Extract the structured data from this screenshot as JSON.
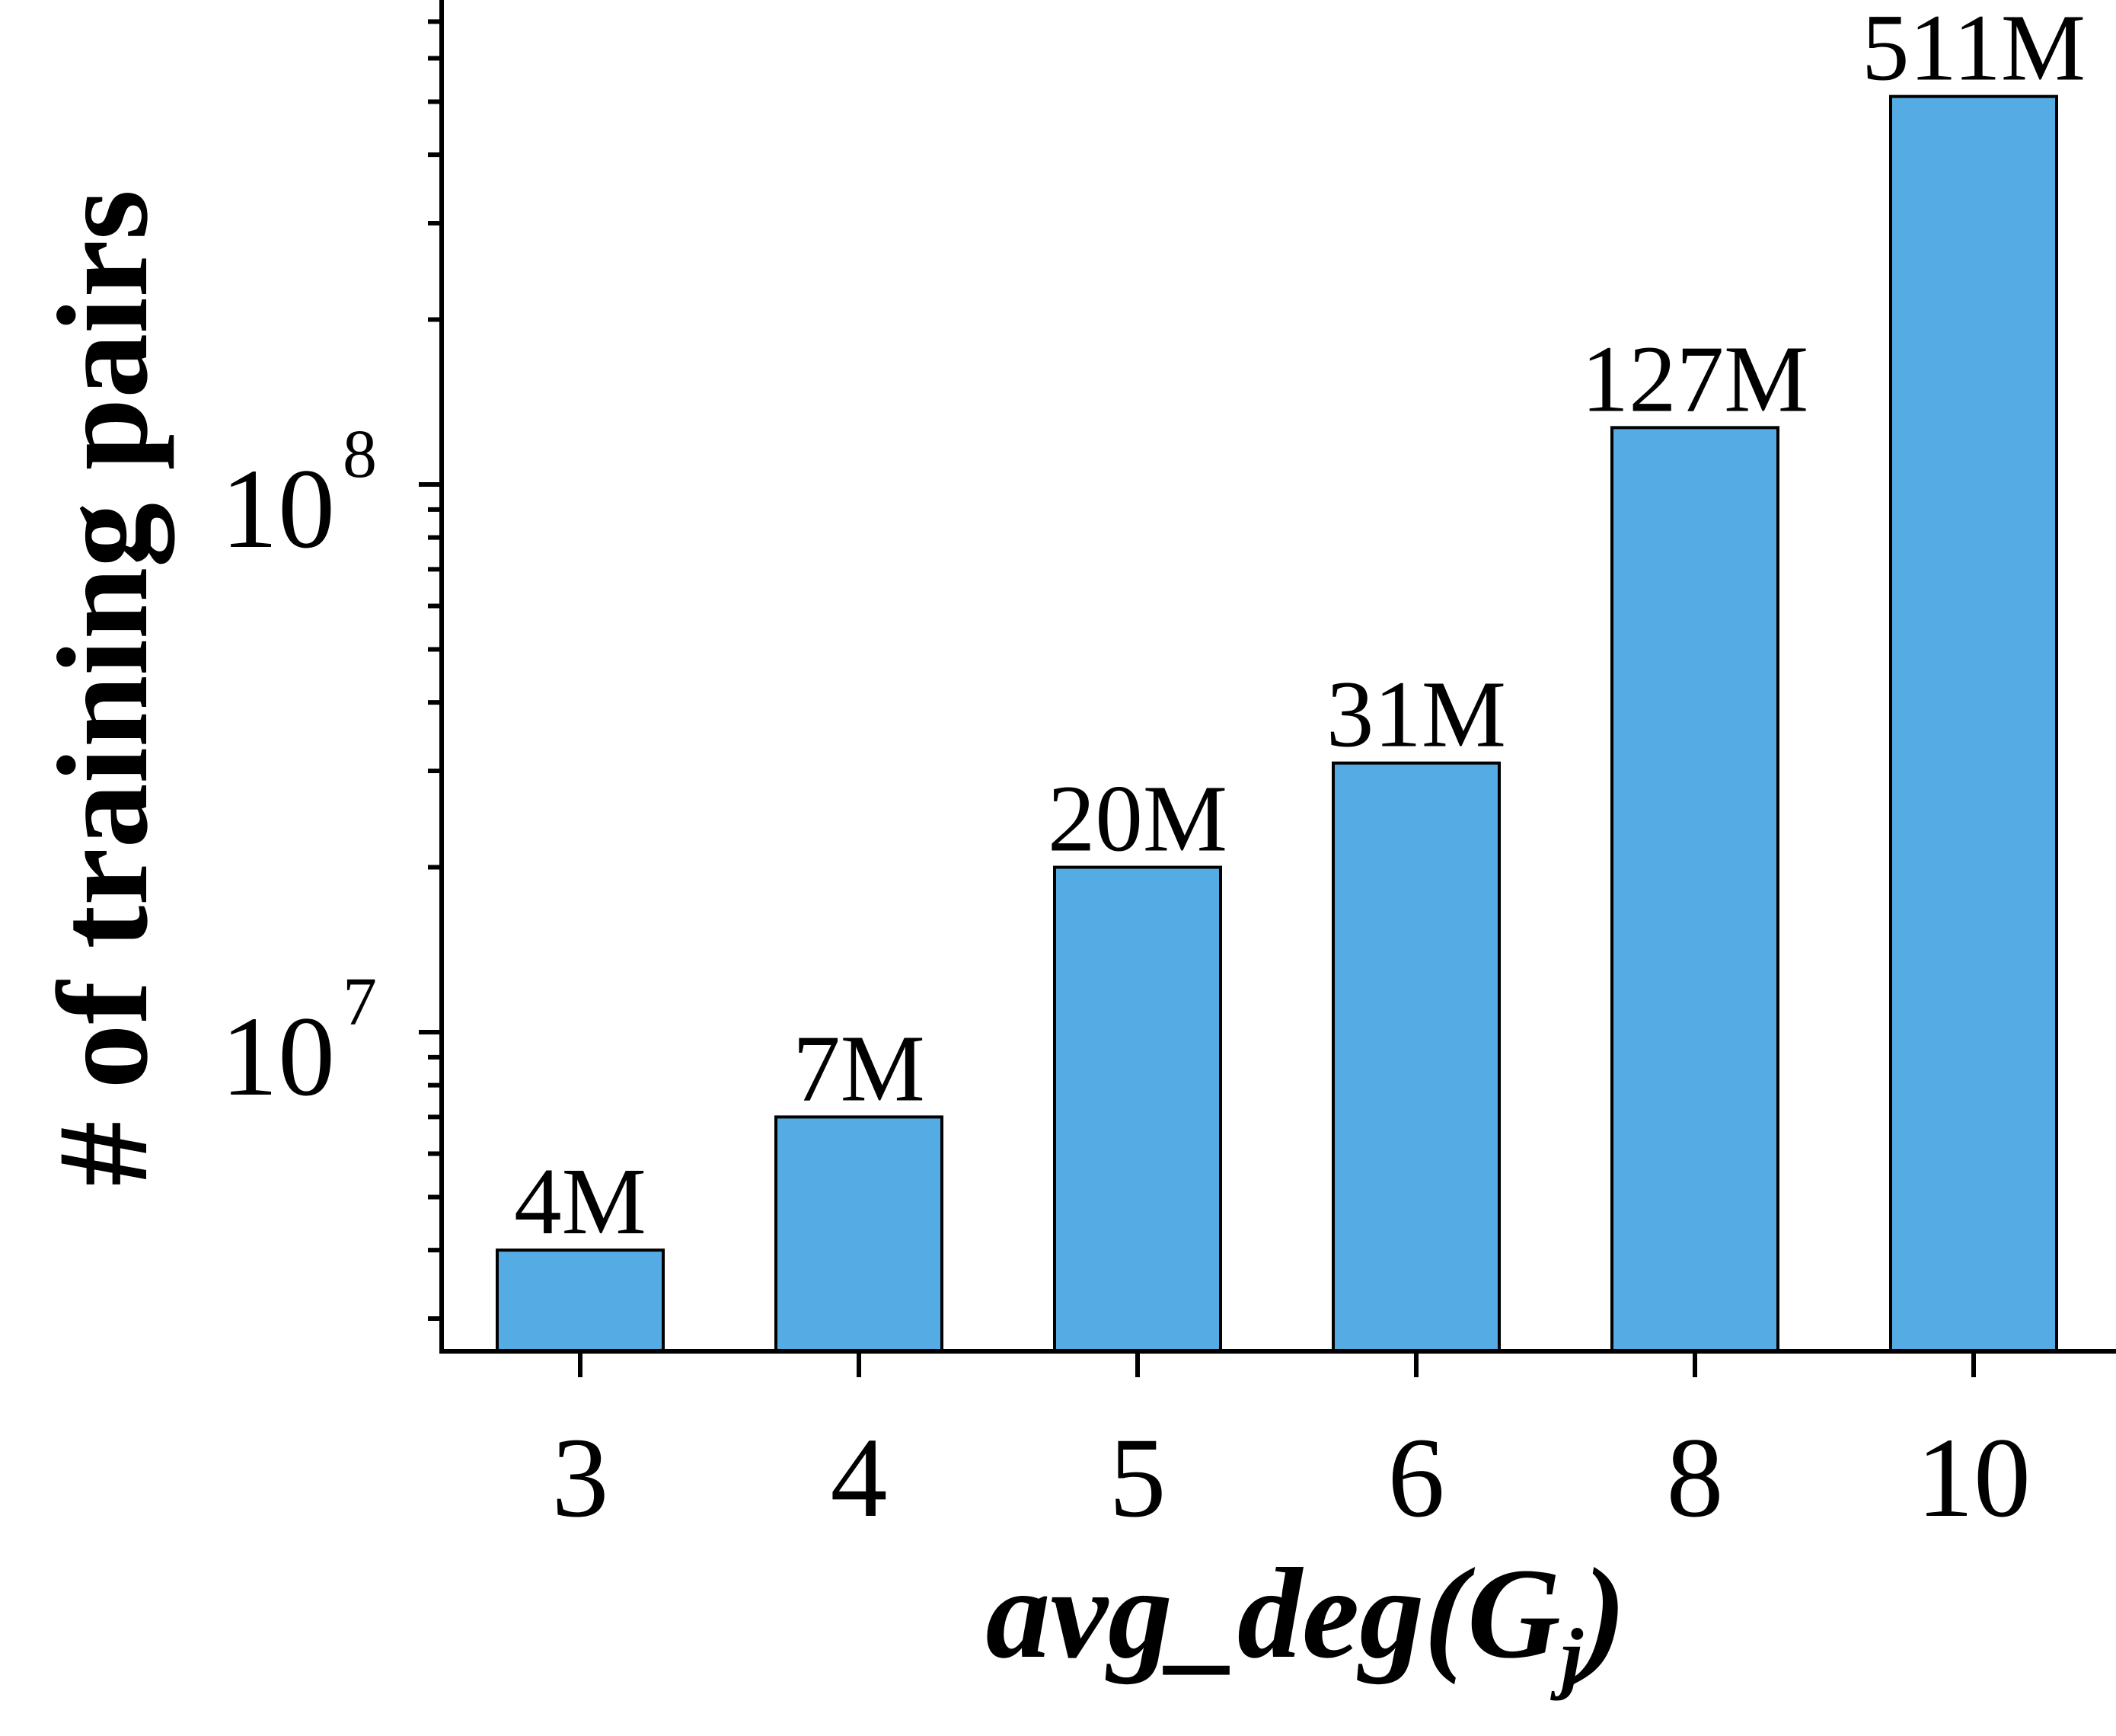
{
  "chart_data": {
    "type": "bar",
    "categories": [
      "3",
      "4",
      "5",
      "6",
      "8",
      "10"
    ],
    "values": [
      4000000,
      7000000,
      20000000,
      31000000,
      127000000,
      511000000
    ],
    "data_labels": [
      "4M",
      "7M",
      "20M",
      "31M",
      "127M",
      "511M"
    ],
    "xlabel_main": "avg_deg(G",
    "xlabel_sub": "j",
    "xlabel_close": ")",
    "ylabel": "# of training pairs",
    "yscale": "log",
    "ylim": [
      3000000,
      1000000000
    ],
    "y_ticks": [
      {
        "base": "10",
        "exp": "7",
        "value": 10000000
      },
      {
        "base": "10",
        "exp": "8",
        "value": 100000000
      }
    ],
    "grid": false,
    "bar_color": "#55ACE4"
  }
}
